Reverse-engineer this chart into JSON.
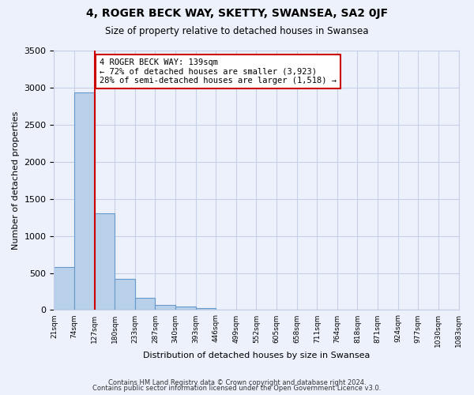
{
  "title": "4, ROGER BECK WAY, SKETTY, SWANSEA, SA2 0JF",
  "subtitle": "Size of property relative to detached houses in Swansea",
  "xlabel": "Distribution of detached houses by size in Swansea",
  "ylabel": "Number of detached properties",
  "bin_edges": [
    "21sqm",
    "74sqm",
    "127sqm",
    "180sqm",
    "233sqm",
    "287sqm",
    "340sqm",
    "393sqm",
    "446sqm",
    "499sqm",
    "552sqm",
    "605sqm",
    "658sqm",
    "711sqm",
    "764sqm",
    "818sqm",
    "871sqm",
    "924sqm",
    "977sqm",
    "1030sqm",
    "1083sqm"
  ],
  "bar_values": [
    580,
    2930,
    1310,
    420,
    165,
    70,
    50,
    30,
    0,
    0,
    0,
    0,
    0,
    0,
    0,
    0,
    0,
    0,
    0,
    0
  ],
  "bar_color": "#b8d0ea",
  "bar_edge_color": "#6699cc",
  "vline_color": "#cc0000",
  "vline_position": 2,
  "annotation_text": "4 ROGER BECK WAY: 139sqm\n← 72% of detached houses are smaller (3,923)\n28% of semi-detached houses are larger (1,518) →",
  "annotation_box_facecolor": "#ffffff",
  "annotation_box_edgecolor": "#cc0000",
  "ylim": [
    0,
    3500
  ],
  "yticks": [
    0,
    500,
    1000,
    1500,
    2000,
    2500,
    3000,
    3500
  ],
  "footer_line1": "Contains HM Land Registry data © Crown copyright and database right 2024.",
  "footer_line2": "Contains public sector information licensed under the Open Government Licence v3.0.",
  "background_color": "#edf1fb",
  "grid_color": "#c5cfe8"
}
